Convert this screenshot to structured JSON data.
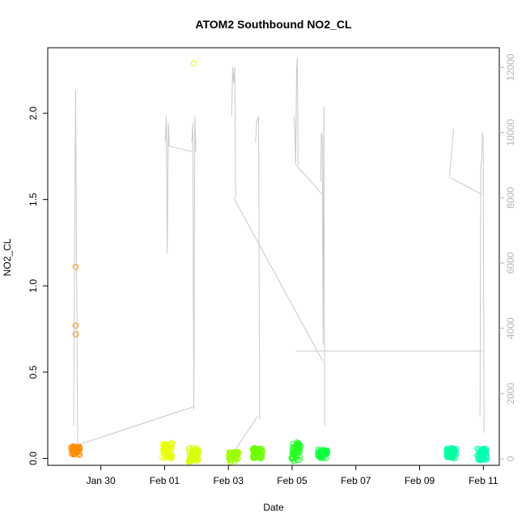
{
  "chart_data": {
    "type": "scatter",
    "title": "ATOM2 Southbound NO2_CL",
    "xlabel": "Date",
    "ylabel": "NO2_CL",
    "x_axis": {
      "min": "2023-01-28T08:00",
      "max": "2023-02-11T12:00",
      "ticks": [
        {
          "x": "2023-01-30T00:00",
          "label": "Jan 30"
        },
        {
          "x": "2023-02-01T00:00",
          "label": "Feb 01"
        },
        {
          "x": "2023-02-03T00:00",
          "label": "Feb 03"
        },
        {
          "x": "2023-02-05T00:00",
          "label": "Feb 05"
        },
        {
          "x": "2023-02-07T00:00",
          "label": "Feb 07"
        },
        {
          "x": "2023-02-09T00:00",
          "label": "Feb 09"
        },
        {
          "x": "2023-02-11T00:00",
          "label": "Feb 11"
        }
      ]
    },
    "y_left": {
      "min": -0.04,
      "max": 2.38,
      "ticks": [
        0.0,
        0.5,
        1.0,
        1.5,
        2.0
      ],
      "labels": [
        "0.0",
        "0.5",
        "1.0",
        "1.5",
        "2.0"
      ]
    },
    "y_right": {
      "min": -200,
      "max": 12600,
      "ticks": [
        0,
        2000,
        4000,
        6000,
        8000,
        10000,
        12000
      ],
      "labels": [
        "0",
        "2000",
        "4000",
        "6000",
        "8000",
        "10000",
        "12000"
      ],
      "color": "#b4b4b4"
    },
    "grid": false,
    "point_colors": [
      "#FF8C00",
      "#F0FF00",
      "#80FF00",
      "#00FF20",
      "#00FFB0"
    ],
    "line_color": "#c8c8c8",
    "series": [
      {
        "marker": "open-circle",
        "axis": "left",
        "color_by_time": true,
        "clusters": [
          {
            "x": "2023-01-29T05:00",
            "color": "#FF8C00",
            "base_y": [
              0.02,
              0.07
            ],
            "outliers": [
              1.11,
              0.77,
              0.72
            ]
          },
          {
            "x": "2023-02-01T02:00",
            "color": "#E8FF00",
            "base_y": [
              0.0,
              0.09
            ],
            "outliers": []
          },
          {
            "x": "2023-02-01T22:00",
            "color": "#D8FF00",
            "base_y": [
              -0.02,
              0.06
            ],
            "outliers": [
              2.29
            ]
          },
          {
            "x": "2023-02-03T04:00",
            "color": "#9CFF00",
            "base_y": [
              -0.02,
              0.04
            ],
            "outliers": []
          },
          {
            "x": "2023-02-03T22:00",
            "color": "#6CFF00",
            "base_y": [
              0.0,
              0.06
            ],
            "outliers": []
          },
          {
            "x": "2023-02-05T03:00",
            "color": "#20FF20",
            "base_y": [
              -0.02,
              0.1
            ],
            "outliers": []
          },
          {
            "x": "2023-02-05T23:00",
            "color": "#10FF40",
            "base_y": [
              0.0,
              0.05
            ],
            "outliers": []
          },
          {
            "x": "2023-02-10T00:00",
            "color": "#00FFA0",
            "base_y": [
              0.0,
              0.06
            ],
            "outliers": []
          },
          {
            "x": "2023-02-10T23:00",
            "color": "#00FFB0",
            "base_y": [
              -0.01,
              0.06
            ],
            "outliers": []
          }
        ]
      },
      {
        "marker": "line",
        "axis": "right",
        "color": "#c8c8c8",
        "segments": [
          {
            "x": "2023-01-29T05:00",
            "y": [
              1000,
              11300,
              400
            ]
          },
          {
            "x": "2023-02-01T02:00",
            "y": [
              9700,
              10500,
              6300,
              10300,
              9600
            ]
          },
          {
            "x": "2023-02-01T22:00",
            "y": [
              9700,
              10300,
              1500,
              10500,
              9400
            ]
          },
          {
            "x": "2023-02-03T04:00",
            "y": [
              10500,
              12000,
              11500,
              12000,
              8000
            ]
          },
          {
            "x": "2023-02-03T22:00",
            "y": [
              9700,
              10300,
              10400,
              10500,
              1200
            ]
          },
          {
            "x": "2023-02-05T03:00",
            "y": [
              10500,
              10000,
              9000,
              11800,
              12300,
              9000
            ]
          },
          {
            "x": "2023-02-05T23:00",
            "y": [
              8500,
              10000,
              9800,
              3500,
              10800,
              1000
            ]
          },
          {
            "x": "2023-02-10T00:00",
            "y": [
              8600,
              10100
            ]
          },
          {
            "x": "2023-02-10T23:00",
            "y": [
              1300,
              8900,
              9200,
              10000,
              9800,
              800
            ]
          }
        ],
        "connectors": [
          [
            {
              "x": "2023-01-29T05:00",
              "y": 400
            },
            {
              "x": "2023-02-01T22:00",
              "y": 1600
            }
          ],
          [
            {
              "x": "2023-02-01T02:00",
              "y": 9600
            },
            {
              "x": "2023-02-01T22:00",
              "y": 9400
            }
          ],
          [
            {
              "x": "2023-02-03T04:00",
              "y": 8000
            },
            {
              "x": "2023-02-05T23:00",
              "y": 3000
            }
          ],
          [
            {
              "x": "2023-02-03T04:00",
              "y": 200
            },
            {
              "x": "2023-02-03T22:00",
              "y": 1300
            }
          ],
          [
            {
              "x": "2023-02-05T03:00",
              "y": 9000
            },
            {
              "x": "2023-02-05T23:00",
              "y": 8100
            }
          ],
          [
            {
              "x": "2023-02-05T03:00",
              "y": 3300
            },
            {
              "x": "2023-02-10T23:00",
              "y": 3300
            }
          ],
          [
            {
              "x": "2023-02-10T00:00",
              "y": 8600
            },
            {
              "x": "2023-02-10T23:00",
              "y": 8100
            }
          ]
        ]
      }
    ]
  }
}
